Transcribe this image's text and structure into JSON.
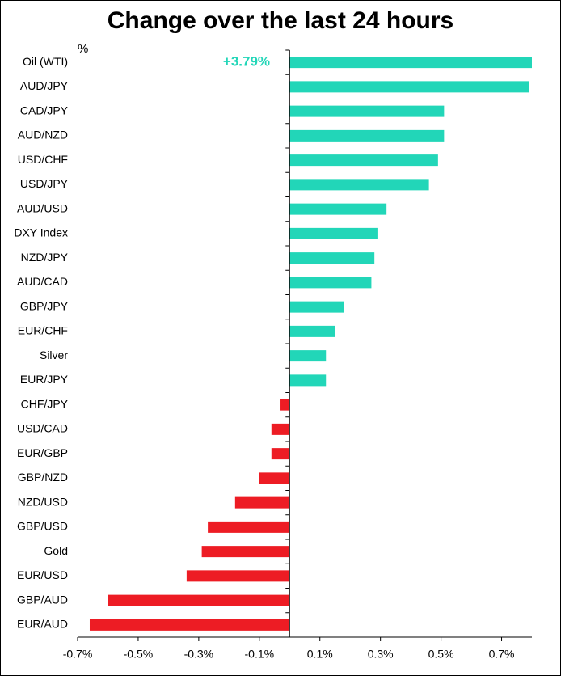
{
  "chart_data": {
    "type": "hbar",
    "title": "Change over the last 24 hours",
    "axis_label": "%",
    "categories": [
      "Oil (WTI)",
      "AUD/JPY",
      "CAD/JPY",
      "AUD/NZD",
      "USD/CHF",
      "USD/JPY",
      "AUD/USD",
      "DXY Index",
      "NZD/JPY",
      "AUD/CAD",
      "GBP/JPY",
      "EUR/CHF",
      "Silver",
      "EUR/JPY",
      "CHF/JPY",
      "USD/CAD",
      "EUR/GBP",
      "GBP/NZD",
      "NZD/USD",
      "GBP/USD",
      "Gold",
      "EUR/USD",
      "GBP/AUD",
      "EUR/AUD"
    ],
    "values": [
      3.79,
      0.79,
      0.51,
      0.51,
      0.49,
      0.46,
      0.32,
      0.29,
      0.28,
      0.27,
      0.18,
      0.15,
      0.12,
      0.12,
      -0.03,
      -0.06,
      -0.06,
      -0.1,
      -0.18,
      -0.27,
      -0.29,
      -0.34,
      -0.6,
      -0.66
    ],
    "value_labels": [
      "+3.79%",
      null,
      null,
      null,
      null,
      null,
      null,
      null,
      null,
      null,
      null,
      null,
      null,
      null,
      null,
      null,
      null,
      null,
      null,
      null,
      null,
      null,
      null,
      null
    ],
    "positive_color": "#22d6b8",
    "negative_color": "#ed1c24",
    "xlim": [
      -0.7,
      0.8
    ],
    "xticks": [
      {
        "value": -0.7,
        "label": "-0.7%"
      },
      {
        "value": -0.5,
        "label": "-0.5%"
      },
      {
        "value": -0.3,
        "label": "-0.3%"
      },
      {
        "value": -0.1,
        "label": "-0.1%"
      },
      {
        "value": 0.1,
        "label": "0.1%"
      },
      {
        "value": 0.3,
        "label": "0.3%"
      },
      {
        "value": 0.5,
        "label": "0.5%"
      },
      {
        "value": 0.7,
        "label": "0.7%"
      }
    ]
  }
}
